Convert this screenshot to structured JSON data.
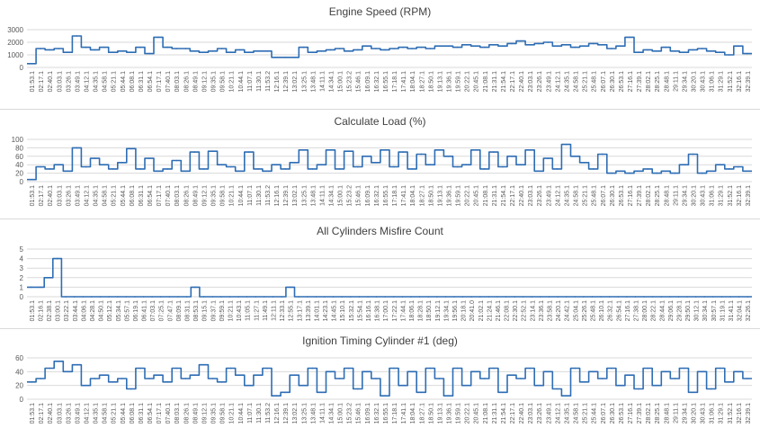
{
  "colors": {
    "line": "#2e6db4",
    "grid": "#d9d9d9",
    "text": "#595959",
    "title": "#404040"
  },
  "chart_data": [
    {
      "type": "line",
      "title": "Engine Speed (RPM)",
      "xlabel": "",
      "ylabel": "",
      "ylim": [
        0,
        3000
      ],
      "yticks": [
        0,
        1000,
        2000,
        3000
      ],
      "grid": true,
      "categories": [
        "01:53.1",
        "02:17.1",
        "02:40.1",
        "03:03.1",
        "03:26.1",
        "03:49.1",
        "04:12.1",
        "04:35.1",
        "04:58.1",
        "05:21.1",
        "05:44.1",
        "06:08.1",
        "06:31.1",
        "06:54.1",
        "07:17.1",
        "07:40.1",
        "08:03.1",
        "08:26.1",
        "08:49.1",
        "09:12.1",
        "09:35.1",
        "09:58.1",
        "10:21.1",
        "10:44.1",
        "11:07.1",
        "11:30.1",
        "11:53.2",
        "12:16.1",
        "12:39.1",
        "13:02.1",
        "13:25.1",
        "13:48.1",
        "14:11.1",
        "14:34.1",
        "15:00.1",
        "15:23.2",
        "15:46.1",
        "16:09.1",
        "16:32.1",
        "16:55.1",
        "17:18.1",
        "17:41.1",
        "18:04.1",
        "18:27.1",
        "18:50.1",
        "19:13.1",
        "19:36.1",
        "19:59.1",
        "20:22.1",
        "20:45.1",
        "21:08.1",
        "21:31.1",
        "21:54.1",
        "22:17.1",
        "22:40.1",
        "23:03.1",
        "23:26.1",
        "23:49.1",
        "24:12.1",
        "24:35.1",
        "24:58.1",
        "25:21.1",
        "25:48.1",
        "26:07.1",
        "26:30.1",
        "26:53.1",
        "27:16.1",
        "27:39.1",
        "28:02.1",
        "28:25.1",
        "28:48.1",
        "29:11.1",
        "29:34.1",
        "30:20.1",
        "30:43.1",
        "31:06.1",
        "31:29.1",
        "31:52.1",
        "32:16.1",
        "32:39.1"
      ],
      "series": [
        {
          "values": [
            300,
            1500,
            1400,
            1500,
            1200,
            2500,
            1600,
            1400,
            1600,
            1200,
            1300,
            1200,
            1600,
            1100,
            2400,
            1600,
            1500,
            1500,
            1300,
            1200,
            1300,
            1500,
            1200,
            1400,
            1200,
            1300,
            1300,
            800,
            800,
            800,
            1600,
            1200,
            1300,
            1400,
            1500,
            1300,
            1400,
            1700,
            1500,
            1400,
            1500,
            1600,
            1500,
            1600,
            1500,
            1700,
            1700,
            1600,
            1800,
            1700,
            1600,
            1800,
            1700,
            1900,
            2100,
            1800,
            1900,
            2000,
            1700,
            1800,
            1600,
            1700,
            1900,
            1800,
            1500,
            1700,
            2400,
            1200,
            1400,
            1300,
            1600,
            1300,
            1200,
            1400,
            1500,
            1300,
            1200,
            1000,
            1700,
            1100
          ]
        }
      ]
    },
    {
      "type": "line",
      "title": "Calculate Load (%)",
      "xlabel": "",
      "ylabel": "",
      "ylim": [
        0,
        100
      ],
      "yticks": [
        0,
        20,
        40,
        60,
        80,
        100
      ],
      "grid": true,
      "categories": [
        "01:53.1",
        "02:17.1",
        "02:40.1",
        "03:03.1",
        "03:26.1",
        "03:49.1",
        "04:12.1",
        "04:35.1",
        "04:58.1",
        "05:21.1",
        "05:44.1",
        "06:08.1",
        "06:31.1",
        "06:54.1",
        "07:17.1",
        "07:40.1",
        "08:03.1",
        "08:26.1",
        "08:49.1",
        "09:12.1",
        "09:35.1",
        "09:58.1",
        "10:21.1",
        "10:44.1",
        "11:07.1",
        "11:30.1",
        "11:53.2",
        "12:16.1",
        "12:39.1",
        "13:02.1",
        "13:25.1",
        "13:48.1",
        "14:11.1",
        "14:34.1",
        "15:00.1",
        "15:23.2",
        "15:46.1",
        "16:09.1",
        "16:32.1",
        "16:55.1",
        "17:18.1",
        "17:41.1",
        "18:04.1",
        "18:27.1",
        "18:50.1",
        "19:13.1",
        "19:36.1",
        "19:59.1",
        "20:22.1",
        "20:45.1",
        "21:08.1",
        "21:31.1",
        "21:54.1",
        "22:17.1",
        "22:40.1",
        "23:03.1",
        "23:26.1",
        "23:49.1",
        "24:12.1",
        "24:35.1",
        "24:58.1",
        "25:21.1",
        "25:48.1",
        "26:07.1",
        "26:30.1",
        "26:53.1",
        "27:16.1",
        "27:39.1",
        "28:02.1",
        "28:25.1",
        "28:48.1",
        "29:11.1",
        "29:34.1",
        "30:20.1",
        "30:43.1",
        "31:06.1",
        "31:29.1",
        "31:52.1",
        "32:16.1",
        "32:39.1"
      ],
      "series": [
        {
          "values": [
            5,
            35,
            30,
            40,
            25,
            80,
            35,
            55,
            40,
            30,
            45,
            78,
            30,
            55,
            25,
            30,
            50,
            25,
            70,
            30,
            72,
            40,
            35,
            25,
            70,
            30,
            25,
            40,
            30,
            45,
            75,
            30,
            40,
            75,
            30,
            72,
            35,
            60,
            45,
            75,
            35,
            70,
            30,
            65,
            40,
            75,
            60,
            35,
            40,
            75,
            30,
            70,
            35,
            60,
            40,
            75,
            25,
            55,
            30,
            88,
            60,
            45,
            30,
            65,
            20,
            25,
            20,
            25,
            30,
            20,
            25,
            20,
            40,
            65,
            20,
            25,
            40,
            30,
            35,
            25
          ]
        }
      ]
    },
    {
      "type": "line",
      "title": "All Cylinders Misfire Count",
      "xlabel": "",
      "ylabel": "",
      "ylim": [
        0,
        5
      ],
      "yticks": [
        0,
        1,
        2,
        3,
        4,
        5
      ],
      "grid": true,
      "categories": [
        "01:53.1",
        "02:16.1",
        "02:38.1",
        "03:00.1",
        "03:22.1",
        "03:44.1",
        "04:06.1",
        "04:28.1",
        "04:50.1",
        "05:12.1",
        "05:34.1",
        "05:57.1",
        "06:19.1",
        "06:41.1",
        "07:03.1",
        "07:25.1",
        "07:47.1",
        "08:09.1",
        "08:31.1",
        "08:53.1",
        "09:15.1",
        "09:37.1",
        "09:59.1",
        "10:21.1",
        "10:43.1",
        "11:05.1",
        "11:27.1",
        "11:49.1",
        "12:11.1",
        "12:33.1",
        "12:55.1",
        "13:17.1",
        "13:39.1",
        "14:01.1",
        "14:23.1",
        "14:45.1",
        "15:10.1",
        "15:32.1",
        "15:54.1",
        "16:16.1",
        "16:38.1",
        "17:00.1",
        "17:22.1",
        "17:44.1",
        "18:06.1",
        "18:28.1",
        "18:50.1",
        "19:12.1",
        "19:34.1",
        "19:56.1",
        "20:18.1",
        "20:41.0",
        "21:02.1",
        "21:24.1",
        "21:46.1",
        "22:08.1",
        "22:30.1",
        "22:52.1",
        "23:14.1",
        "23:36.1",
        "23:58.1",
        "24:20.1",
        "24:42.1",
        "25:04.1",
        "25:26.1",
        "25:48.1",
        "26:10.1",
        "26:32.1",
        "26:54.1",
        "27:16.1",
        "27:38.1",
        "28:00.1",
        "28:22.1",
        "28:44.1",
        "29:06.1",
        "29:28.1",
        "29:50.1",
        "30:12.1",
        "30:34.1",
        "30:57.1",
        "31:19.1",
        "31:41.1",
        "32:04.1",
        "32:26.1"
      ],
      "series": [
        {
          "values": [
            1,
            1,
            2,
            4,
            0,
            0,
            0,
            0,
            0,
            0,
            0,
            0,
            0,
            0,
            0,
            0,
            0,
            0,
            0,
            1,
            0,
            0,
            0,
            0,
            0,
            0,
            0,
            0,
            0,
            0,
            1,
            0,
            0,
            0,
            0,
            0,
            0,
            0,
            0,
            0,
            0,
            0,
            0,
            0,
            0,
            0,
            0,
            0,
            0,
            0,
            0,
            0,
            0,
            0,
            0,
            0,
            0,
            0,
            0,
            0,
            0,
            0,
            0,
            0,
            0,
            0,
            0,
            0,
            0,
            0,
            0,
            0,
            0,
            0,
            0,
            0,
            0,
            0,
            0,
            0,
            0,
            0,
            0,
            0
          ]
        }
      ]
    },
    {
      "type": "line",
      "title": "Ignition Timing Cylinder #1 (deg)",
      "xlabel": "",
      "ylabel": "",
      "ylim": [
        0,
        60
      ],
      "yticks": [
        0,
        20,
        40,
        60
      ],
      "grid": true,
      "categories": [
        "01:53.1",
        "02:17.1",
        "02:40.1",
        "03:03.1",
        "03:26.1",
        "03:49.1",
        "04:12.1",
        "04:35.1",
        "04:58.1",
        "05:21.1",
        "05:44.1",
        "06:08.1",
        "06:31.1",
        "06:54.1",
        "07:17.1",
        "07:40.1",
        "08:03.1",
        "08:26.1",
        "08:49.1",
        "09:12.1",
        "09:35.1",
        "09:58.1",
        "10:21.1",
        "10:44.1",
        "11:07.1",
        "11:30.1",
        "11:53.2",
        "12:16.1",
        "12:39.1",
        "13:02.1",
        "13:25.1",
        "13:48.1",
        "14:11.1",
        "14:34.1",
        "15:00.1",
        "15:23.2",
        "15:46.1",
        "16:09.1",
        "16:32.1",
        "16:55.1",
        "17:18.1",
        "17:41.1",
        "18:04.1",
        "18:27.1",
        "18:50.1",
        "19:13.1",
        "19:36.1",
        "19:59.1",
        "20:22.1",
        "20:45.1",
        "21:08.1",
        "21:31.1",
        "21:54.1",
        "22:17.1",
        "22:40.1",
        "23:03.1",
        "23:26.1",
        "23:49.1",
        "24:12.1",
        "24:35.1",
        "24:58.1",
        "25:21.1",
        "25:44.1",
        "26:07.1",
        "26:30.1",
        "26:53.1",
        "27:16.1",
        "27:39.1",
        "28:02.1",
        "28:25.1",
        "28:48.1",
        "29:11.1",
        "29:34.1",
        "30:20.1",
        "30:43.1",
        "31:06.1",
        "31:29.1",
        "31:52.1",
        "32:16.1",
        "32:39.1"
      ],
      "series": [
        {
          "values": [
            25,
            30,
            45,
            55,
            40,
            50,
            20,
            30,
            35,
            25,
            30,
            15,
            45,
            30,
            35,
            25,
            45,
            30,
            35,
            50,
            30,
            25,
            45,
            35,
            20,
            35,
            45,
            5,
            10,
            35,
            20,
            45,
            10,
            40,
            30,
            45,
            15,
            40,
            30,
            5,
            45,
            20,
            40,
            10,
            45,
            30,
            5,
            45,
            20,
            40,
            30,
            45,
            10,
            35,
            30,
            45,
            20,
            40,
            15,
            5,
            45,
            25,
            40,
            30,
            45,
            20,
            35,
            15,
            45,
            20,
            40,
            30,
            45,
            10,
            40,
            15,
            45,
            25,
            40,
            30
          ]
        }
      ]
    }
  ]
}
